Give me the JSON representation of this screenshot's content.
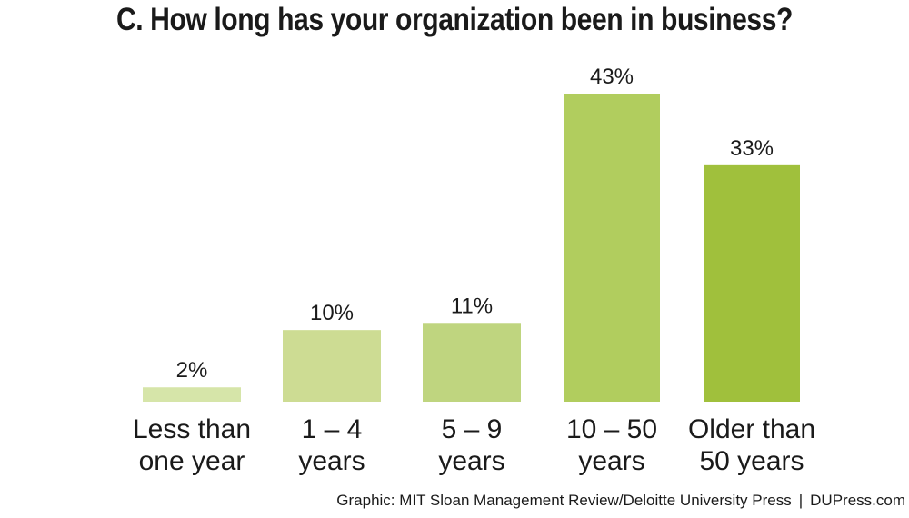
{
  "title": "C. How long has your organization been in business?",
  "credit": {
    "source": "Graphic: MIT Sloan Management Review/Deloitte University Press",
    "separator": "|",
    "site": "DUPress.com"
  },
  "chart_data": {
    "type": "bar",
    "title": "C. How long has your organization been in business?",
    "categories": [
      [
        "Less than",
        "one year"
      ],
      [
        "1 – 4",
        "years"
      ],
      [
        "5 – 9",
        "years"
      ],
      [
        "10 – 50",
        "years"
      ],
      [
        "Older than",
        "50 years"
      ]
    ],
    "values": [
      2,
      10,
      11,
      43,
      33
    ],
    "value_labels": [
      "2%",
      "10%",
      "11%",
      "43%",
      "33%"
    ],
    "unit": "%",
    "colors": [
      "#d6e5a9",
      "#cddc93",
      "#bfd57f",
      "#b1cd5e",
      "#a0c03c"
    ],
    "ylim": [
      0,
      43
    ],
    "grid": false,
    "legend": "none"
  }
}
